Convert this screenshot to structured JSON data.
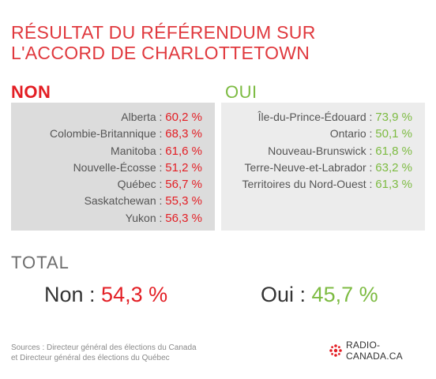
{
  "title": {
    "line1": "RÉSULTAT DU RÉFÉRENDUM SUR",
    "line2": "L'ACCORD DE CHARLOTTETOWN"
  },
  "non": {
    "heading": "NON",
    "rows": [
      {
        "province": "Alberta",
        "value": "60,2 %"
      },
      {
        "province": "Colombie-Britannique",
        "value": "68,3 %"
      },
      {
        "province": "Manitoba",
        "value": "61,6 %"
      },
      {
        "province": "Nouvelle-Écosse",
        "value": "51,2 %"
      },
      {
        "province": "Québec",
        "value": "56,7 %"
      },
      {
        "province": "Saskatchewan",
        "value": "55,3 %"
      },
      {
        "province": "Yukon",
        "value": "56,3 %"
      }
    ]
  },
  "oui": {
    "heading": "OUI",
    "rows": [
      {
        "province": "Île-du-Prince-Édouard",
        "value": "73,9 %"
      },
      {
        "province": "Ontario",
        "value": "50,1 %"
      },
      {
        "province": "Nouveau-Brunswick",
        "value": "61,8 %"
      },
      {
        "province": "Terre-Neuve-et-Labrador",
        "value": "63,2 %"
      },
      {
        "province": "Territoires du Nord-Ouest",
        "value": "61,3 %"
      }
    ]
  },
  "total": {
    "heading": "TOTAL",
    "non_label": "Non",
    "non_value": "54,3 %",
    "oui_label": "Oui",
    "oui_value": "45,7 %"
  },
  "sources": {
    "line1": "Sources : Directeur général des élections du Canada",
    "line2": "et Directeur général des élections du Québec"
  },
  "logo": {
    "text": "RADIO-CANADA.CA",
    "icon": "radio-canada-gem-icon",
    "color": "#e31e24"
  },
  "colors": {
    "title": "#e0393e",
    "non": "#e31e24",
    "oui": "#7dbb42"
  }
}
